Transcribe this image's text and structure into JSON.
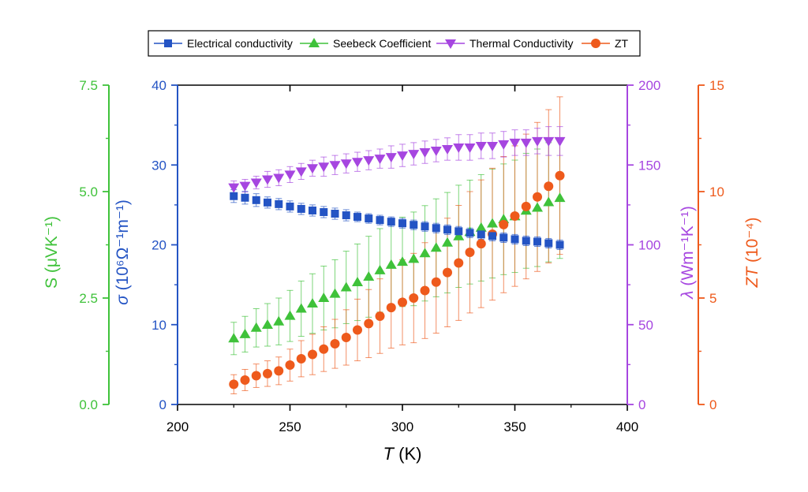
{
  "chart_data": {
    "type": "scatter",
    "x": [
      225,
      230,
      235,
      240,
      245,
      250,
      255,
      260,
      265,
      270,
      275,
      280,
      285,
      290,
      295,
      300,
      305,
      310,
      315,
      320,
      325,
      330,
      335,
      340,
      345,
      350,
      355,
      360,
      365,
      370
    ],
    "xlim": [
      200,
      400
    ],
    "x_ticks": [
      "200",
      "250",
      "300",
      "350",
      "400"
    ],
    "xlabel": {
      "italic": "T",
      "rest": " (K)"
    },
    "legend": {
      "position": "top-center"
    },
    "axes": {
      "sigma": {
        "side": "left-inner",
        "color": "#2454c4",
        "lim": [
          0,
          40
        ],
        "ticks": [
          "0",
          "10",
          "20",
          "30",
          "40"
        ],
        "label": {
          "italic": "σ",
          "rest": " (10⁶Ω⁻¹m⁻¹)"
        }
      },
      "S": {
        "side": "left-outer",
        "color": "#3fc23a",
        "lim": [
          0,
          7.5
        ],
        "ticks": [
          "0.0",
          "2.5",
          "5.0",
          "7.5"
        ],
        "label": {
          "italic": "",
          "rest": "S (μVK⁻¹)"
        }
      },
      "lambda": {
        "side": "right-inner",
        "color": "#a646e0",
        "lim": [
          0,
          200
        ],
        "ticks": [
          "0",
          "50",
          "100",
          "150",
          "200"
        ],
        "label": {
          "italic": "λ",
          "rest": " (Wm⁻¹K⁻¹)"
        }
      },
      "ZT": {
        "side": "right-outer",
        "color": "#ee5a1c",
        "lim": [
          0,
          15
        ],
        "ticks": [
          "0",
          "5",
          "10",
          "15"
        ],
        "label": {
          "italic": "ZT",
          "rest": " (10⁻⁴)"
        }
      }
    },
    "series": [
      {
        "name": "Electrical conductivity",
        "axis": "sigma",
        "marker": "square",
        "color": "#2454c4",
        "values": [
          26.1,
          25.9,
          25.6,
          25.3,
          25.1,
          24.8,
          24.5,
          24.3,
          24.1,
          23.9,
          23.7,
          23.5,
          23.3,
          23.1,
          22.9,
          22.7,
          22.5,
          22.3,
          22.1,
          21.9,
          21.7,
          21.5,
          21.3,
          21.1,
          20.9,
          20.7,
          20.5,
          20.4,
          20.2,
          20.0
        ],
        "errors": [
          0.8,
          0.8,
          0.8,
          0.7,
          0.7,
          0.7,
          0.7,
          0.7,
          0.7,
          0.7,
          0.7,
          0.6,
          0.6,
          0.6,
          0.6,
          0.6,
          0.6,
          0.6,
          0.6,
          0.6,
          0.6,
          0.6,
          0.6,
          0.6,
          0.6,
          0.6,
          0.6,
          0.6,
          0.6,
          0.6
        ]
      },
      {
        "name": "Seebeck Coefficient",
        "axis": "S",
        "marker": "triangle-up",
        "color": "#3fc23a",
        "values": [
          1.55,
          1.65,
          1.8,
          1.87,
          1.95,
          2.08,
          2.25,
          2.37,
          2.5,
          2.6,
          2.75,
          2.87,
          3.0,
          3.15,
          3.28,
          3.35,
          3.42,
          3.55,
          3.68,
          3.8,
          3.95,
          4.05,
          4.15,
          4.25,
          4.35,
          4.42,
          4.55,
          4.62,
          4.75,
          4.85
        ],
        "errors": [
          0.38,
          0.42,
          0.45,
          0.5,
          0.55,
          0.6,
          0.65,
          0.7,
          0.75,
          0.8,
          0.85,
          0.9,
          0.95,
          0.98,
          1.0,
          1.05,
          1.1,
          1.12,
          1.15,
          1.18,
          1.2,
          1.22,
          1.25,
          1.28,
          1.3,
          1.32,
          1.35,
          1.38,
          1.4,
          1.42
        ]
      },
      {
        "name": "Thermal Conductivity",
        "axis": "lambda",
        "marker": "triangle-down",
        "color": "#a646e0",
        "values": [
          136,
          137,
          139,
          141,
          142,
          144,
          146,
          148,
          149,
          150,
          151,
          152,
          153,
          154,
          155,
          156,
          157,
          158,
          159,
          160,
          161,
          161,
          162,
          162,
          163,
          164,
          164,
          165,
          165,
          165
        ],
        "errors": [
          4,
          4,
          4,
          5,
          5,
          5,
          5,
          5,
          6,
          6,
          6,
          6,
          6,
          6,
          7,
          7,
          7,
          7,
          7,
          7,
          8,
          8,
          8,
          8,
          8,
          8,
          8,
          8,
          9,
          9
        ]
      },
      {
        "name": "ZT",
        "axis": "ZT",
        "marker": "circle",
        "color": "#ee5a1c",
        "values": [
          0.95,
          1.15,
          1.35,
          1.45,
          1.58,
          1.85,
          2.15,
          2.35,
          2.6,
          2.85,
          3.15,
          3.5,
          3.8,
          4.15,
          4.55,
          4.8,
          5.0,
          5.35,
          5.75,
          6.2,
          6.65,
          7.15,
          7.55,
          8.0,
          8.45,
          8.85,
          9.3,
          9.75,
          10.25,
          10.75
        ],
        "errors": [
          0.45,
          0.5,
          0.55,
          0.6,
          0.65,
          0.75,
          0.85,
          0.95,
          1.05,
          1.15,
          1.3,
          1.45,
          1.6,
          1.75,
          1.9,
          2.0,
          2.1,
          2.25,
          2.4,
          2.55,
          2.7,
          2.85,
          3.0,
          3.1,
          3.2,
          3.3,
          3.4,
          3.5,
          3.6,
          3.7
        ]
      }
    ]
  }
}
